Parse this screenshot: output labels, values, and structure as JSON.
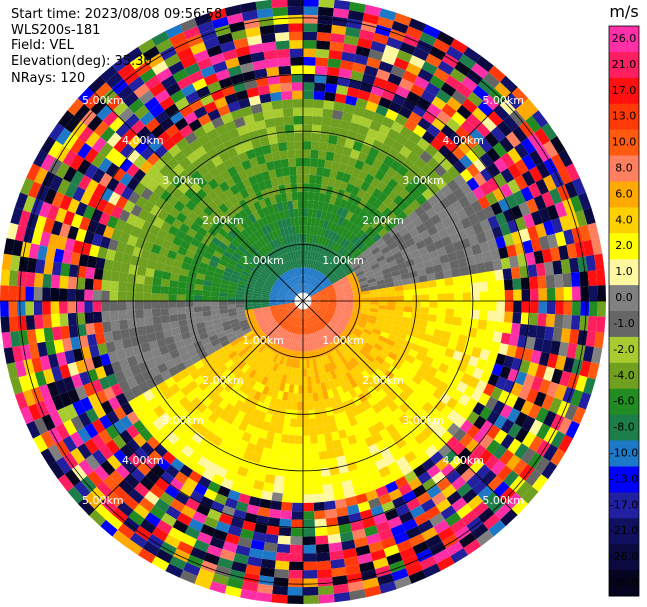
{
  "header": {
    "start_time": "Start time: 2023/08/08 09:56:58",
    "site": "WLS200s-181",
    "field": "Field: VEL",
    "elevation": "Elevation(deg): 35.30",
    "nrays": "NRays: 120"
  },
  "chart_data": {
    "type": "ppi-polar",
    "field": "VEL",
    "n_rays": 120,
    "ring_labels": [
      "1.00km",
      "2.00km",
      "3.00km",
      "4.00km",
      "5.00km"
    ],
    "ring_radii_km": [
      1,
      2,
      3,
      4,
      5
    ],
    "max_range_km": 5.35,
    "diagonal_label_angles_deg": [
      45,
      135,
      225,
      315
    ],
    "colorbar": {
      "unit": "m/s",
      "tick_labels": [
        "26.0",
        "21.0",
        "17.0",
        "13.0",
        "10.0",
        "8.0",
        "6.0",
        "4.0",
        "2.0",
        "1.0",
        "0.0",
        "-1.0",
        "-2.0",
        "-4.0",
        "-6.0",
        "-8.0",
        "-10.0",
        "-13.0",
        "-17.0",
        "-21.0",
        "-26.0",
        "-30.0"
      ],
      "bin_colors": [
        "#ff2fa8",
        "#ff1e60",
        "#ff0f0f",
        "#ff3a08",
        "#ff5a10",
        "#ff8060",
        "#ffaa00",
        "#ffd000",
        "#ffff00",
        "#fff8a0",
        "#808080",
        "#666666",
        "#a8cc30",
        "#70a020",
        "#228b22",
        "#1e7e4a",
        "#1e78c8",
        "#0000ff",
        "#2020a0",
        "#101060",
        "#0a0a40",
        "#050520"
      ]
    },
    "velocity_zones": [
      {
        "name": "near-negative",
        "range_km": [
          0,
          0.8
        ],
        "mean_az_deg": 0,
        "velocity": -10
      },
      {
        "name": "near-positive",
        "range_km": [
          0,
          1.3
        ],
        "mean_az_deg": 170,
        "velocity": 13
      },
      {
        "name": "mid-negative",
        "range_km": [
          0.8,
          3.5
        ],
        "mean_az_deg": 345,
        "velocity": -6
      },
      {
        "name": "mid-positive",
        "range_km": [
          1.0,
          3.5
        ],
        "mean_az_deg": 150,
        "velocity": 6
      }
    ]
  },
  "colors": {
    "grid": "#000000",
    "background": "#ffffff"
  }
}
